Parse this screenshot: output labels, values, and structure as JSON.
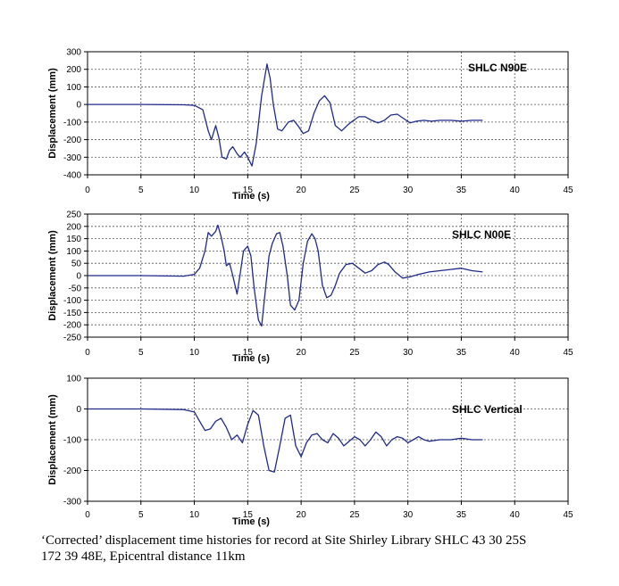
{
  "chart_data": [
    {
      "type": "line",
      "label": "SHLC N90E",
      "xlabel": "Time (s)",
      "ylabel": "Displacement (mm)",
      "xlim": [
        0,
        45
      ],
      "ylim": [
        -400,
        300
      ],
      "xticks": [
        "0",
        "5",
        "10",
        "15",
        "20",
        "25",
        "30",
        "35",
        "40",
        "45"
      ],
      "yticks": [
        "300",
        "200",
        "100",
        "0",
        "-100",
        "-200",
        "-300",
        "-400"
      ],
      "grid": true,
      "color": "#1f2a8a",
      "series": [
        {
          "x": [
            0,
            5,
            9,
            10,
            10.8,
            11.3,
            11.6,
            12,
            12.3,
            12.6,
            13,
            13.3,
            13.6,
            14,
            14.3,
            14.7,
            15,
            15.4,
            15.8,
            16.3,
            16.8,
            17.1,
            17.4,
            17.8,
            18.2,
            18.8,
            19.3,
            19.7,
            20.2,
            20.7,
            21.2,
            21.7,
            22.2,
            22.7,
            23.2,
            23.8,
            24.3,
            24.8,
            25.4,
            26,
            26.6,
            27.2,
            27.8,
            28.4,
            29,
            29.6,
            30.2,
            30.8,
            31.5,
            32.2,
            33,
            34,
            35,
            36,
            37
          ],
          "y": [
            0,
            0,
            -2,
            -5,
            -30,
            -150,
            -200,
            -120,
            -190,
            -300,
            -310,
            -260,
            -240,
            -280,
            -300,
            -270,
            -300,
            -350,
            -220,
            50,
            230,
            150,
            0,
            -140,
            -150,
            -100,
            -90,
            -120,
            -165,
            -150,
            -50,
            20,
            50,
            10,
            -120,
            -150,
            -120,
            -95,
            -70,
            -70,
            -90,
            -105,
            -90,
            -60,
            -55,
            -80,
            -105,
            -95,
            -90,
            -95,
            -90,
            -90,
            -95,
            -90,
            -90
          ]
        }
      ]
    },
    {
      "type": "line",
      "label": "SHLC N00E",
      "xlabel": "Time (s)",
      "ylabel": "Displacement (mm)",
      "xlim": [
        0,
        45
      ],
      "ylim": [
        -250,
        250
      ],
      "xticks": [
        "0",
        "5",
        "10",
        "15",
        "20",
        "25",
        "30",
        "35",
        "40",
        "45"
      ],
      "yticks": [
        "250",
        "200",
        "150",
        "100",
        "50",
        "0",
        "-50",
        "-100",
        "-150",
        "-200",
        "-250"
      ],
      "grid": true,
      "color": "#1f2a8a",
      "series": [
        {
          "x": [
            0,
            5,
            9,
            10,
            10.5,
            11,
            11.3,
            11.6,
            12,
            12.2,
            12.5,
            12.8,
            13,
            13.3,
            13.6,
            14,
            14.3,
            14.6,
            15,
            15.3,
            15.6,
            16,
            16.3,
            16.6,
            17,
            17.3,
            17.7,
            18,
            18.3,
            18.7,
            19,
            19.4,
            19.8,
            20.2,
            20.6,
            21,
            21.3,
            21.6,
            22,
            22.4,
            22.8,
            23.2,
            23.6,
            24.2,
            24.8,
            25.4,
            26,
            26.6,
            27.2,
            27.8,
            28.2,
            28.8,
            29.5,
            30.2,
            31,
            32,
            33,
            34,
            35,
            36,
            37
          ],
          "y": [
            0,
            0,
            -2,
            5,
            30,
            100,
            175,
            160,
            180,
            205,
            160,
            100,
            40,
            50,
            0,
            -75,
            10,
            100,
            120,
            80,
            -50,
            -180,
            -205,
            -80,
            80,
            130,
            170,
            175,
            120,
            0,
            -120,
            -140,
            -100,
            50,
            140,
            170,
            150,
            100,
            -40,
            -90,
            -80,
            -40,
            10,
            45,
            50,
            30,
            10,
            20,
            45,
            55,
            45,
            15,
            -10,
            -5,
            5,
            15,
            20,
            25,
            30,
            20,
            15
          ]
        }
      ]
    },
    {
      "type": "line",
      "label": "SHLC Vertical",
      "xlabel": "Time (s)",
      "ylabel": "Displacement (mm)",
      "xlim": [
        0,
        45
      ],
      "ylim": [
        -300,
        100
      ],
      "xticks": [
        "0",
        "5",
        "10",
        "15",
        "20",
        "25",
        "30",
        "35",
        "40",
        "45"
      ],
      "yticks": [
        "100",
        "0",
        "-100",
        "-200",
        "-300"
      ],
      "grid": true,
      "color": "#1f2a8a",
      "series": [
        {
          "x": [
            0,
            5,
            9,
            10,
            10.5,
            11,
            11.5,
            12,
            12.5,
            13,
            13.5,
            14,
            14.5,
            15,
            15.5,
            16,
            16.5,
            17,
            17.5,
            18,
            18.5,
            19,
            19.5,
            20,
            20.5,
            21,
            21.5,
            22,
            22.5,
            23,
            23.5,
            24,
            24.5,
            25,
            25.5,
            26,
            26.5,
            27,
            27.5,
            28,
            28.5,
            29,
            29.5,
            30,
            30.5,
            31,
            31.5,
            32,
            33,
            34,
            35,
            36,
            37
          ],
          "y": [
            0,
            0,
            -2,
            -10,
            -40,
            -70,
            -65,
            -40,
            -30,
            -60,
            -100,
            -85,
            -110,
            -50,
            -5,
            -20,
            -120,
            -200,
            -205,
            -120,
            -30,
            -20,
            -120,
            -155,
            -110,
            -85,
            -80,
            -100,
            -110,
            -80,
            -95,
            -120,
            -105,
            -90,
            -100,
            -120,
            -100,
            -75,
            -90,
            -120,
            -100,
            -90,
            -95,
            -110,
            -100,
            -90,
            -100,
            -105,
            -100,
            -100,
            -95,
            -100,
            -100
          ]
        }
      ]
    }
  ],
  "caption": {
    "line1": "‘Corrected’ displacement time histories for record at Site Shirley Library SHLC  43 30 25S",
    "line2": "172 39 48E, Epicentral distance 11km"
  }
}
